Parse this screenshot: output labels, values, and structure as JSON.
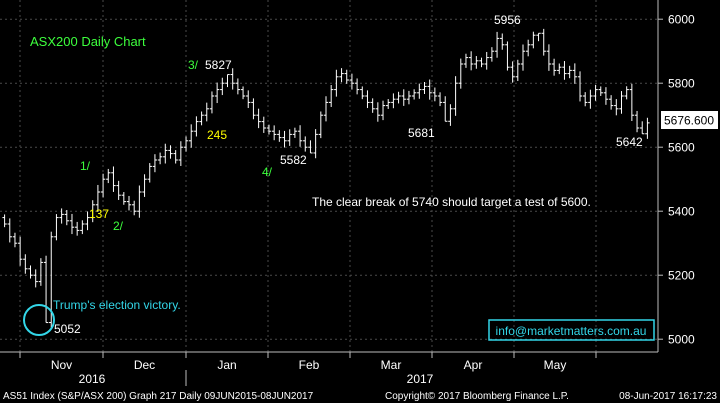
{
  "chart_data": {
    "type": "ohlc-bar",
    "title": "ASX200 Daily Chart",
    "ylim": [
      4960,
      6060
    ],
    "y_ticks": [
      5000,
      5200,
      5400,
      5600,
      5800,
      6000
    ],
    "last_price": "5676.600",
    "months": [
      "Nov",
      "Dec",
      "Jan",
      "Feb",
      "Mar",
      "Apr",
      "May"
    ],
    "years": [
      "2016",
      "2017"
    ],
    "bars": [
      5360,
      5320,
      5300,
      5250,
      5220,
      5200,
      5180,
      5240,
      5052,
      5320,
      5380,
      5390,
      5370,
      5350,
      5340,
      5360,
      5380,
      5420,
      5460,
      5500,
      5520,
      5480,
      5450,
      5430,
      5420,
      5400,
      5460,
      5500,
      5540,
      5560,
      5570,
      5590,
      5580,
      5560,
      5600,
      5620,
      5650,
      5680,
      5700,
      5720,
      5760,
      5780,
      5800,
      5827,
      5800,
      5780,
      5760,
      5740,
      5700,
      5680,
      5660,
      5650,
      5640,
      5630,
      5620,
      5640,
      5650,
      5620,
      5600,
      5582,
      5640,
      5700,
      5740,
      5780,
      5820,
      5830,
      5810,
      5800,
      5780,
      5760,
      5740,
      5720,
      5700,
      5730,
      5740,
      5750,
      5760,
      5750,
      5760,
      5770,
      5780,
      5790,
      5770,
      5760,
      5740,
      5681,
      5720,
      5800,
      5860,
      5880,
      5860,
      5870,
      5860,
      5880,
      5900,
      5940,
      5920,
      5850,
      5820,
      5860,
      5900,
      5920,
      5950,
      5956,
      5900,
      5860,
      5840,
      5850,
      5830,
      5840,
      5820,
      5760,
      5740,
      5760,
      5780,
      5770,
      5750,
      5730,
      5720,
      5760,
      5780,
      5700,
      5660,
      5642,
      5676
    ],
    "annotations": {
      "wave3": "3/",
      "high_jan": "5827",
      "pts245": "245",
      "wave4": "4/",
      "low_feb": "5582",
      "low_mar": "5681",
      "high_apr": "5956",
      "wave1": "1/",
      "pts137": "137",
      "wave2": "2/",
      "low_jun": "5642",
      "trump_low": "5052",
      "trump_label": "Trump's election victory.",
      "comment": "The clear break of 5740 should target a test of 5600.",
      "website": "info@marketmatters.com.au"
    },
    "footer": {
      "left": "AS51 Index (S&P/ASX 200) Graph 217  Daily 09JUN2015-08JUN2017",
      "center": "Copyright© 2017 Bloomberg Finance L.P.",
      "right": "08-Jun-2017 16:17:23"
    },
    "colors": {
      "bg": "#000000",
      "grid": "#4a4a4a",
      "bars": "#ffffff",
      "title": "#3dff3d",
      "wave": "#3dff3d",
      "yellow": "#ffff00",
      "cyan": "#33d6e8",
      "price_box": "#ffffff"
    }
  }
}
